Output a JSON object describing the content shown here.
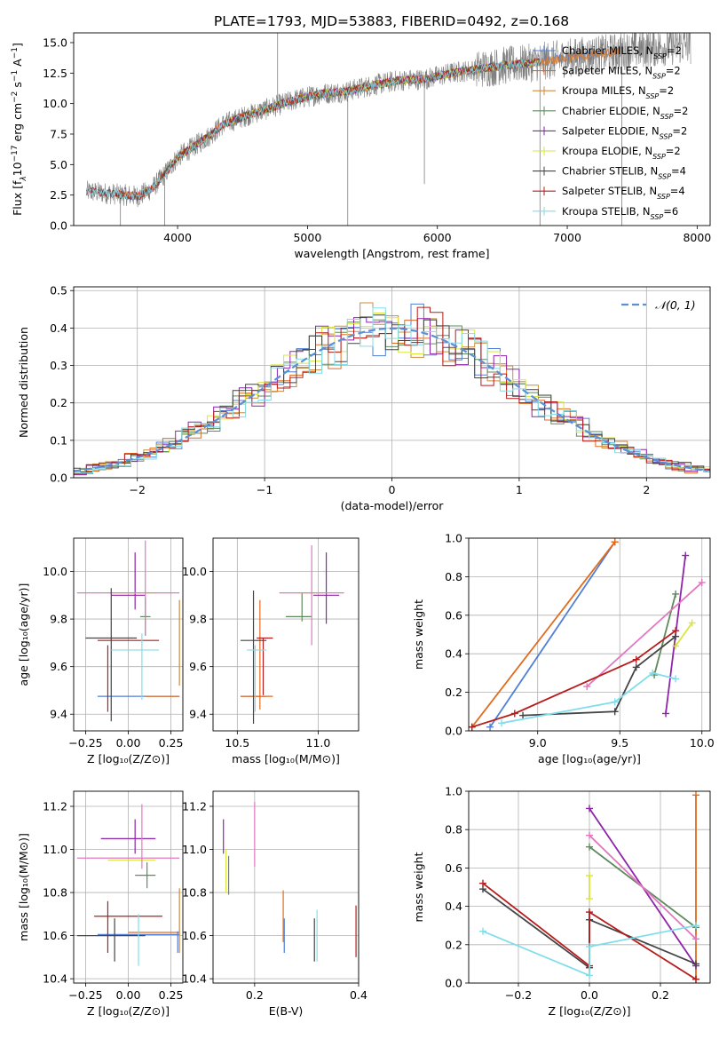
{
  "figure": {
    "title": "PLATE=1793, MJD=53883, FIBERID=0492, z=0.168"
  },
  "colors": {
    "Chabrier MILES": "#4f7fd6",
    "Salpeter MILES": "#e06b1e",
    "Kroupa MILES": "#d08a3c",
    "Chabrier ELODIE": "#5e8a5e",
    "Salpeter ELODIE": "#8e24aa",
    "Kroupa ELODIE": "#d9e63c",
    "Chabrier STELIB": "#444444",
    "Salpeter STELIB": "#b71c1c",
    "Kroupa STELIB": "#80deea",
    "pink": "#e377c2",
    "orange": "#e06b1e",
    "normal": "#5b8fd6"
  },
  "chart_data": [
    {
      "id": "spectrum",
      "type": "line",
      "title": "PLATE=1793, MJD=53883, FIBERID=0492, z=0.168",
      "xlabel": "wavelength [Angstrom, rest frame]",
      "ylabel_parts": [
        "Flux [f",
        "λ",
        "10",
        "−17",
        " erg cm",
        "−2",
        " s",
        "−1",
        " A",
        "−1",
        "]"
      ],
      "xlim": [
        3200,
        8100
      ],
      "ylim": [
        0,
        15.8
      ],
      "xticks": [
        4000,
        5000,
        6000,
        7000,
        8000
      ],
      "yticks": [
        0.0,
        2.5,
        5.0,
        7.5,
        10.0,
        12.5,
        15.0
      ],
      "grid": false,
      "legend_position": "right",
      "legend": [
        {
          "label": "Chabrier MILES",
          "nssp": "2"
        },
        {
          "label": "Salpeter MILES",
          "nssp": "2"
        },
        {
          "label": "Kroupa MILES",
          "nssp": "2"
        },
        {
          "label": "Chabrier ELODIE",
          "nssp": "2"
        },
        {
          "label": "Salpeter ELODIE",
          "nssp": "2"
        },
        {
          "label": "Kroupa ELODIE",
          "nssp": "2"
        },
        {
          "label": "Chabrier STELIB",
          "nssp": "4"
        },
        {
          "label": "Salpeter STELIB",
          "nssp": "4"
        },
        {
          "label": "Kroupa STELIB",
          "nssp": "6"
        }
      ],
      "continuum": {
        "x": [
          3300,
          3500,
          3700,
          3800,
          3900,
          4000,
          4100,
          4250,
          4350,
          4500,
          4700,
          4900,
          5100,
          5300,
          5500,
          5700,
          5900,
          6100,
          6300,
          6500,
          6700,
          6900,
          7100,
          7300,
          7500,
          7700,
          7900
        ],
        "y": [
          2.8,
          2.6,
          2.4,
          3.0,
          4.2,
          5.6,
          6.3,
          7.4,
          8.3,
          8.9,
          9.6,
          10.3,
          10.8,
          11.0,
          11.5,
          11.9,
          12.0,
          12.5,
          12.8,
          13.1,
          13.3,
          13.6,
          13.9,
          14.1,
          14.4,
          14.6,
          14.8
        ]
      },
      "data_spikes": [
        {
          "x": 3560,
          "y": 0.0
        },
        {
          "x": 3900,
          "y": 0.0
        },
        {
          "x": 4770,
          "y": 15.8
        },
        {
          "x": 5310,
          "y": 0.0
        },
        {
          "x": 5900,
          "y": 3.4
        },
        {
          "x": 6790,
          "y": 0.0
        },
        {
          "x": 7420,
          "y": 0.0
        }
      ]
    },
    {
      "id": "residuals",
      "type": "histogram",
      "xlabel": "(data-model)/error",
      "ylabel": "Normed distribution",
      "xlim": [
        -2.5,
        2.5
      ],
      "ylim": [
        0,
        0.51
      ],
      "xticks": [
        -2,
        -1,
        0,
        1,
        2
      ],
      "yticks": [
        0.0,
        0.1,
        0.2,
        0.3,
        0.4,
        0.5
      ],
      "grid": true,
      "legend_position": "top-right",
      "legend_label": "𝒩(0, 1)",
      "bin_width": 0.1,
      "reference_curve": "normal(0,1)"
    },
    {
      "id": "age_vs_Z",
      "type": "errorbar",
      "xlabel": "Z [log₁₀(Z/Z⊙)]",
      "ylabel": "age  [log₁₀(age/yr)]",
      "xlim": [
        -0.32,
        0.32
      ],
      "ylim": [
        9.33,
        10.14
      ],
      "xticks": [
        -0.25,
        0.0,
        0.25
      ],
      "xtick_labels": [
        "−0.25",
        "0.00",
        "0.25"
      ],
      "yticks": [
        9.4,
        9.6,
        9.8,
        10.0
      ],
      "grid": true,
      "points": [
        {
          "series": "Chabrier MILES",
          "x": 0.06,
          "xerr": 0.24,
          "y": 9.475,
          "yerr": 0.0
        },
        {
          "series": "Salpeter MILES",
          "x": 0.2,
          "xerr": 0.1,
          "y": 9.475,
          "yerr": 0.0
        },
        {
          "series": "Kroupa MILES",
          "x": 0.3,
          "xerr": 0.0,
          "y": 9.7,
          "yerr": 0.18
        },
        {
          "series": "Chabrier ELODIE",
          "x": 0.1,
          "xerr": 0.03,
          "y": 9.81,
          "yerr": 0.08
        },
        {
          "series": "Salpeter ELODIE",
          "x": 0.0,
          "xerr": 0.1,
          "y": 9.9,
          "yerr": 0.0
        },
        {
          "series": "Salpeter ELODIE",
          "x": 0.04,
          "xerr": 0.0,
          "y": 9.96,
          "yerr": 0.12
        },
        {
          "series": "Kroupa ELODIE",
          "x": 0.02,
          "xerr": 0.14,
          "y": 9.91,
          "yerr": 0.0
        },
        {
          "series": "pink",
          "x": 0.1,
          "xerr": 0.0,
          "y": 9.93,
          "yerr": 0.2
        },
        {
          "series": "pink",
          "x": 0.0,
          "xerr": 0.3,
          "y": 9.91,
          "yerr": 0.0
        },
        {
          "series": "Chabrier STELIB",
          "x": -0.1,
          "xerr": 0.15,
          "y": 9.72,
          "yerr": 0.0
        },
        {
          "series": "Chabrier STELIB",
          "x": -0.1,
          "xerr": 0.0,
          "y": 9.65,
          "yerr": 0.28
        },
        {
          "series": "Salpeter STELIB",
          "x": -0.12,
          "xerr": 0.0,
          "y": 9.55,
          "yerr": 0.14
        },
        {
          "series": "Salpeter STELIB",
          "x": 0.0,
          "xerr": 0.18,
          "y": 9.71,
          "yerr": 0.0
        },
        {
          "series": "Kroupa STELIB",
          "x": 0.04,
          "xerr": 0.14,
          "y": 9.67,
          "yerr": 0.0
        },
        {
          "series": "Kroupa STELIB",
          "x": 0.08,
          "xerr": 0.0,
          "y": 9.6,
          "yerr": 0.14
        }
      ]
    },
    {
      "id": "age_vs_mass",
      "type": "errorbar",
      "xlabel": "mass [log₁₀(M/M⊙)]",
      "ylabel": "",
      "xlim": [
        10.35,
        11.25
      ],
      "ylim": [
        9.33,
        10.14
      ],
      "xticks": [
        10.5,
        11.0
      ],
      "yticks": [
        9.4,
        9.6,
        9.8,
        10.0
      ],
      "grid": true,
      "points": [
        {
          "series": "Chabrier MILES",
          "x": 10.6,
          "xerr": 0.08,
          "y": 9.475,
          "yerr": 0.0
        },
        {
          "series": "Salpeter MILES",
          "x": 10.64,
          "xerr": 0.0,
          "y": 9.65,
          "yerr": 0.23
        },
        {
          "series": "Salpeter MILES",
          "x": 10.62,
          "xerr": 0.1,
          "y": 9.475,
          "yerr": 0.0
        },
        {
          "series": "Chabrier ELODIE",
          "x": 10.88,
          "xerr": 0.08,
          "y": 9.81,
          "yerr": 0.0
        },
        {
          "series": "Chabrier ELODIE",
          "x": 10.9,
          "xerr": 0.0,
          "y": 9.85,
          "yerr": 0.06
        },
        {
          "series": "Salpeter ELODIE",
          "x": 11.05,
          "xerr": 0.08,
          "y": 9.9,
          "yerr": 0.0
        },
        {
          "series": "Salpeter ELODIE",
          "x": 11.05,
          "xerr": 0.0,
          "y": 9.93,
          "yerr": 0.15
        },
        {
          "series": "Kroupa ELODIE",
          "x": 10.95,
          "xerr": 0.08,
          "y": 9.91,
          "yerr": 0.0
        },
        {
          "series": "pink",
          "x": 10.96,
          "xerr": 0.0,
          "y": 9.9,
          "yerr": 0.21
        },
        {
          "series": "pink",
          "x": 10.96,
          "xerr": 0.2,
          "y": 9.91,
          "yerr": 0.0
        },
        {
          "series": "Chabrier STELIB",
          "x": 10.6,
          "xerr": 0.08,
          "y": 9.71,
          "yerr": 0.0
        },
        {
          "series": "Chabrier STELIB",
          "x": 10.6,
          "xerr": 0.0,
          "y": 9.64,
          "yerr": 0.28
        },
        {
          "series": "Salpeter STELIB",
          "x": 10.67,
          "xerr": 0.05,
          "y": 9.72,
          "yerr": 0.0
        },
        {
          "series": "Salpeter STELIB",
          "x": 10.66,
          "xerr": 0.0,
          "y": 9.6,
          "yerr": 0.12
        },
        {
          "series": "Kroupa STELIB",
          "x": 10.62,
          "xerr": 0.06,
          "y": 9.67,
          "yerr": 0.0
        },
        {
          "series": "Kroupa STELIB",
          "x": 10.61,
          "xerr": 0.0,
          "y": 9.55,
          "yerr": 0.14
        }
      ]
    },
    {
      "id": "weight_vs_age",
      "type": "line",
      "xlabel": "age  [log₁₀(age/yr)]",
      "ylabel": "mass weight",
      "xlim": [
        8.58,
        10.05
      ],
      "ylim": [
        0,
        1.0
      ],
      "xticks": [
        9.0,
        9.5,
        10.0
      ],
      "yticks": [
        0.0,
        0.2,
        0.4,
        0.6,
        0.8,
        1.0
      ],
      "grid": true,
      "series": [
        {
          "name": "Chabrier MILES",
          "x": [
            8.71,
            9.47
          ],
          "y": [
            0.02,
            0.98
          ]
        },
        {
          "name": "Salpeter MILES",
          "x": [
            8.6,
            9.47
          ],
          "y": [
            0.02,
            0.98
          ]
        },
        {
          "name": "Chabrier ELODIE",
          "x": [
            9.71,
            9.84
          ],
          "y": [
            0.29,
            0.71
          ]
        },
        {
          "name": "Salpeter ELODIE",
          "x": [
            9.78,
            9.9
          ],
          "y": [
            0.09,
            0.91
          ]
        },
        {
          "name": "Kroupa ELODIE",
          "x": [
            9.84,
            9.94
          ],
          "y": [
            0.44,
            0.56
          ]
        },
        {
          "name": "pink",
          "x": [
            9.3,
            10.0
          ],
          "y": [
            0.23,
            0.77
          ]
        },
        {
          "name": "Chabrier STELIB",
          "x": [
            8.91,
            9.47,
            9.6,
            9.84
          ],
          "y": [
            0.08,
            0.1,
            0.33,
            0.49
          ]
        },
        {
          "name": "Salpeter STELIB",
          "x": [
            8.6,
            8.86,
            9.6,
            9.84
          ],
          "y": [
            0.02,
            0.09,
            0.37,
            0.52
          ]
        },
        {
          "name": "Kroupa STELIB",
          "x": [
            8.78,
            9.47,
            9.7,
            9.84
          ],
          "y": [
            0.04,
            0.15,
            0.3,
            0.27
          ]
        }
      ]
    },
    {
      "id": "mass_vs_Z",
      "type": "errorbar",
      "xlabel": "Z [log₁₀(Z/Z⊙)]",
      "ylabel": "mass [log₁₀(M/M⊙)]",
      "xlim": [
        -0.32,
        0.32
      ],
      "ylim": [
        10.38,
        11.27
      ],
      "xticks": [
        -0.25,
        0.0,
        0.25
      ],
      "xtick_labels": [
        "−0.25",
        "0.00",
        "0.25"
      ],
      "yticks": [
        10.4,
        10.6,
        10.8,
        11.0,
        11.2
      ],
      "grid": true,
      "points": [
        {
          "series": "Chabrier MILES",
          "x": 0.06,
          "xerr": 0.24,
          "y": 10.605,
          "yerr": 0.0
        },
        {
          "series": "Salpeter MILES",
          "x": 0.15,
          "xerr": 0.15,
          "y": 10.615,
          "yerr": 0.0
        },
        {
          "series": "Kroupa MILES",
          "x": 0.3,
          "xerr": 0.0,
          "y": 10.67,
          "yerr": 0.15
        },
        {
          "series": "Chabrier ELODIE",
          "x": 0.1,
          "xerr": 0.06,
          "y": 10.88,
          "yerr": 0.0
        },
        {
          "series": "Chabrier ELODIE",
          "x": 0.11,
          "xerr": 0.0,
          "y": 10.88,
          "yerr": 0.06
        },
        {
          "series": "Salpeter ELODIE",
          "x": 0.0,
          "xerr": 0.16,
          "y": 11.05,
          "yerr": 0.0
        },
        {
          "series": "Salpeter ELODIE",
          "x": 0.04,
          "xerr": 0.0,
          "y": 11.06,
          "yerr": 0.08
        },
        {
          "series": "Kroupa ELODIE",
          "x": 0.02,
          "xerr": 0.14,
          "y": 10.95,
          "yerr": 0.0
        },
        {
          "series": "pink",
          "x": 0.08,
          "xerr": 0.0,
          "y": 11.06,
          "yerr": 0.15
        },
        {
          "series": "pink",
          "x": 0.0,
          "xerr": 0.3,
          "y": 10.96,
          "yerr": 0.0
        },
        {
          "series": "Chabrier STELIB",
          "x": -0.1,
          "xerr": 0.2,
          "y": 10.6,
          "yerr": 0.0
        },
        {
          "series": "Chabrier STELIB",
          "x": -0.08,
          "xerr": 0.0,
          "y": 10.58,
          "yerr": 0.1
        },
        {
          "series": "Salpeter STELIB",
          "x": 0.0,
          "xerr": 0.2,
          "y": 10.69,
          "yerr": 0.0
        },
        {
          "series": "Salpeter STELIB",
          "x": -0.12,
          "xerr": 0.0,
          "y": 10.64,
          "yerr": 0.12
        },
        {
          "series": "Kroupa STELIB",
          "x": 0.06,
          "xerr": 0.0,
          "y": 10.58,
          "yerr": 0.12
        },
        {
          "series": "Chabrier MILES",
          "x": 0.29,
          "xerr": 0.0,
          "y": 10.57,
          "yerr": 0.05
        }
      ]
    },
    {
      "id": "mass_vs_ebv",
      "type": "errorbar",
      "xlabel": "E(B-V)",
      "ylabel": "",
      "xlim": [
        0.12,
        0.4
      ],
      "ylim": [
        10.38,
        11.27
      ],
      "xticks": [
        0.2,
        0.4
      ],
      "yticks": [
        10.4,
        10.6,
        10.8,
        11.0,
        11.2
      ],
      "grid": true,
      "points": [
        {
          "series": "Salpeter ELODIE",
          "x": 0.14,
          "xerr": 0.0,
          "y": 11.06,
          "yerr": 0.08
        },
        {
          "series": "Kroupa ELODIE",
          "x": 0.145,
          "xerr": 0.0,
          "y": 10.9,
          "yerr": 0.1
        },
        {
          "series": "Chabrier ELODIE",
          "x": 0.15,
          "xerr": 0.0,
          "y": 10.88,
          "yerr": 0.09
        },
        {
          "series": "pink",
          "x": 0.2,
          "xerr": 0.0,
          "y": 11.07,
          "yerr": 0.15
        },
        {
          "series": "Salpeter MILES",
          "x": 0.255,
          "xerr": 0.0,
          "y": 10.69,
          "yerr": 0.12
        },
        {
          "series": "Chabrier MILES",
          "x": 0.257,
          "xerr": 0.0,
          "y": 10.6,
          "yerr": 0.08
        },
        {
          "series": "Chabrier STELIB",
          "x": 0.315,
          "xerr": 0.0,
          "y": 10.58,
          "yerr": 0.1
        },
        {
          "series": "Kroupa STELIB",
          "x": 0.32,
          "xerr": 0.0,
          "y": 10.6,
          "yerr": 0.12
        },
        {
          "series": "Salpeter STELIB",
          "x": 0.395,
          "xerr": 0.0,
          "y": 10.62,
          "yerr": 0.12
        }
      ]
    },
    {
      "id": "weight_vs_Z",
      "type": "line",
      "xlabel": "Z [log₁₀(Z/Z⊙)]",
      "ylabel": "mass weight",
      "xlim": [
        -0.34,
        0.34
      ],
      "ylim": [
        0,
        1.0
      ],
      "xticks": [
        -0.2,
        0.0,
        0.2
      ],
      "xtick_labels": [
        "−0.2",
        "0.0",
        "0.2"
      ],
      "yticks": [
        0.0,
        0.2,
        0.4,
        0.6,
        0.8,
        1.0
      ],
      "grid": true,
      "series": [
        {
          "name": "Salpeter MILES",
          "x": [
            0.3,
            0.3
          ],
          "y": [
            0.02,
            0.98
          ]
        },
        {
          "name": "Chabrier ELODIE",
          "x": [
            0.0,
            0.3
          ],
          "y": [
            0.71,
            0.29
          ]
        },
        {
          "name": "Salpeter ELODIE",
          "x": [
            0.0,
            0.3
          ],
          "y": [
            0.91,
            0.09
          ]
        },
        {
          "name": "Kroupa ELODIE",
          "x": [
            0.0,
            0.0
          ],
          "y": [
            0.44,
            0.56
          ]
        },
        {
          "name": "pink",
          "x": [
            0.0,
            0.3
          ],
          "y": [
            0.77,
            0.23
          ]
        },
        {
          "name": "Chabrier STELIB",
          "x": [
            -0.3,
            0.0,
            0.0,
            0.3
          ],
          "y": [
            0.49,
            0.08,
            0.33,
            0.1
          ]
        },
        {
          "name": "Salpeter STELIB",
          "x": [
            -0.3,
            0.0,
            0.0,
            0.3
          ],
          "y": [
            0.52,
            0.09,
            0.37,
            0.02
          ]
        },
        {
          "name": "Kroupa STELIB",
          "x": [
            -0.3,
            0.0,
            0.0,
            0.3
          ],
          "y": [
            0.27,
            0.04,
            0.19,
            0.3
          ]
        }
      ]
    }
  ]
}
